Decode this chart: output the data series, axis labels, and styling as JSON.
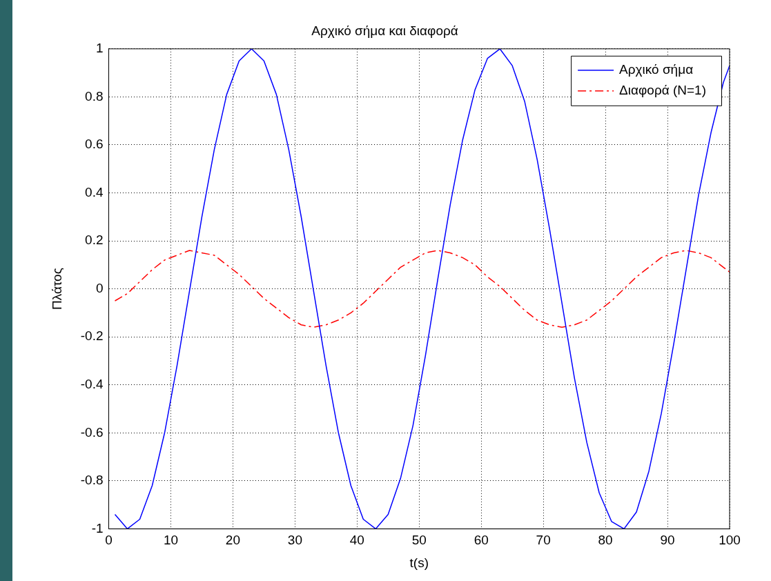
{
  "chart_data": {
    "type": "line",
    "title": "Αρχικό σήμα και διαφορά",
    "xlabel": "t(s)",
    "ylabel": "Πλάτος",
    "x": [
      1,
      3,
      5,
      7,
      9,
      11,
      13,
      15,
      17,
      19,
      21,
      23,
      25,
      27,
      29,
      31,
      33,
      35,
      37,
      39,
      41,
      43,
      45,
      47,
      49,
      51,
      53,
      55,
      57,
      59,
      61,
      63,
      65,
      67,
      69,
      71,
      73,
      75,
      77,
      79,
      81,
      83,
      85,
      87,
      89,
      91,
      93,
      95,
      97,
      99,
      100
    ],
    "series": [
      {
        "name": "Αρχικό σήμα",
        "color": "#0000ff",
        "line_style": "solid",
        "values": [
          -0.94,
          -1.0,
          -0.96,
          -0.82,
          -0.6,
          -0.32,
          -0.01,
          0.3,
          0.58,
          0.81,
          0.95,
          1.0,
          0.95,
          0.81,
          0.58,
          0.3,
          -0.01,
          -0.32,
          -0.6,
          -0.82,
          -0.96,
          -1.0,
          -0.94,
          -0.79,
          -0.57,
          -0.28,
          0.04,
          0.35,
          0.62,
          0.83,
          0.96,
          1.0,
          0.93,
          0.78,
          0.54,
          0.25,
          -0.06,
          -0.37,
          -0.64,
          -0.85,
          -0.97,
          -1.0,
          -0.93,
          -0.76,
          -0.52,
          -0.23,
          0.08,
          0.39,
          0.65,
          0.86,
          0.93
        ]
      },
      {
        "name": "Διαφορά (N=1)",
        "color": "#ff0000",
        "line_style": "dashed",
        "values": [
          -0.05,
          -0.02,
          0.03,
          0.08,
          0.12,
          0.14,
          0.16,
          0.15,
          0.14,
          0.1,
          0.06,
          0.01,
          -0.04,
          -0.08,
          -0.12,
          -0.15,
          -0.16,
          -0.15,
          -0.13,
          -0.1,
          -0.06,
          -0.01,
          0.04,
          0.09,
          0.12,
          0.15,
          0.16,
          0.15,
          0.13,
          0.1,
          0.05,
          0.01,
          -0.04,
          -0.09,
          -0.13,
          -0.15,
          -0.16,
          -0.15,
          -0.13,
          -0.09,
          -0.05,
          0.0,
          0.05,
          0.09,
          0.13,
          0.15,
          0.16,
          0.15,
          0.13,
          0.09,
          0.07
        ]
      }
    ],
    "xlim": [
      0,
      100
    ],
    "xticks": [
      0,
      10,
      20,
      30,
      40,
      50,
      60,
      70,
      80,
      90,
      100
    ],
    "ylim": [
      -1,
      1
    ],
    "yticks": [
      -1,
      -0.8,
      -0.6,
      -0.4,
      -0.2,
      0,
      0.2,
      0.4,
      0.6,
      0.8,
      1
    ],
    "grid": true,
    "legend": "top right",
    "marker": "none"
  }
}
